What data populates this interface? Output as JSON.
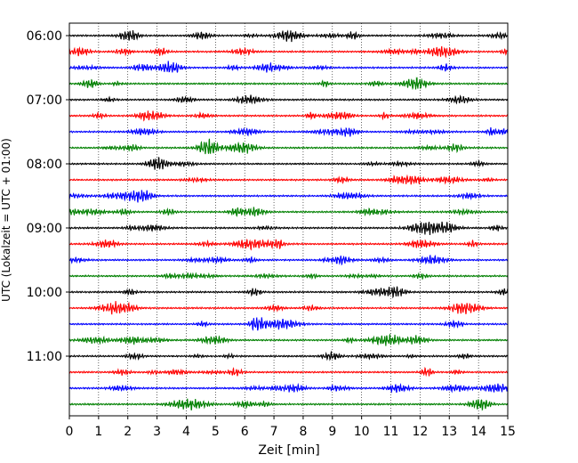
{
  "chart_data": {
    "type": "line",
    "title": "",
    "xlabel": "Zeit  [min]",
    "ylabel": "UTC (Lokalzeit = UTC + 01:00)",
    "xlim": [
      0,
      15
    ],
    "x_ticks": [
      0,
      1,
      2,
      3,
      4,
      5,
      6,
      7,
      8,
      9,
      10,
      11,
      12,
      13,
      14,
      15
    ],
    "y_tick_labels": [
      "06:00",
      "07:00",
      "08:00",
      "09:00",
      "10:00",
      "11:00"
    ],
    "grid": "vertical dotted",
    "trace_start_times": [
      "06:00",
      "06:15",
      "06:30",
      "06:45",
      "07:00",
      "07:15",
      "07:30",
      "07:45",
      "08:00",
      "08:15",
      "08:30",
      "08:45",
      "09:00",
      "09:15",
      "09:30",
      "09:45",
      "10:00",
      "10:15",
      "10:30",
      "10:45",
      "11:00",
      "11:15",
      "11:30",
      "11:45"
    ],
    "trace_duration_min": 15,
    "color_cycle": [
      "#000000",
      "#ff0000",
      "#0000ff",
      "#008000"
    ]
  }
}
